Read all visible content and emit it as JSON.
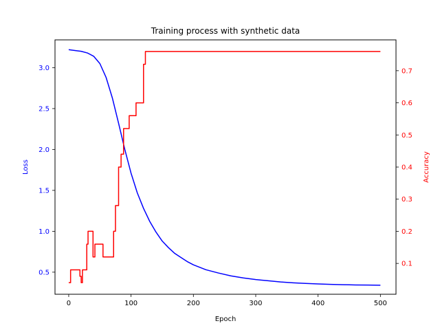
{
  "chart_data": {
    "type": "line",
    "title": "Training process with synthetic data",
    "xlabel": "Epoch",
    "xlim": [
      -22,
      525
    ],
    "xticks": [
      0,
      100,
      200,
      300,
      400,
      500
    ],
    "left_axis": {
      "label": "Loss",
      "color": "#0000ff",
      "ylim": [
        0.23,
        3.34
      ],
      "ticks": [
        0.5,
        1.0,
        1.5,
        2.0,
        2.5,
        3.0
      ],
      "tick_labels": [
        "0.5",
        "1.0",
        "1.5",
        "2.0",
        "2.5",
        "3.0"
      ]
    },
    "right_axis": {
      "label": "Accuracy",
      "color": "#ff0000",
      "ylim": [
        0.004,
        0.796
      ],
      "ticks": [
        0.1,
        0.2,
        0.3,
        0.4,
        0.5,
        0.6,
        0.7
      ],
      "tick_labels": [
        "0.1",
        "0.2",
        "0.3",
        "0.4",
        "0.5",
        "0.6",
        "0.7"
      ]
    },
    "series": [
      {
        "axis": "left",
        "color": "#0000ff",
        "x": [
          0,
          10,
          20,
          30,
          40,
          50,
          60,
          70,
          80,
          90,
          100,
          110,
          120,
          130,
          140,
          150,
          160,
          170,
          180,
          190,
          200,
          220,
          240,
          260,
          280,
          300,
          320,
          340,
          360,
          380,
          400,
          420,
          440,
          460,
          480,
          500
        ],
        "values": [
          3.22,
          3.21,
          3.2,
          3.18,
          3.14,
          3.05,
          2.88,
          2.63,
          2.32,
          2.0,
          1.71,
          1.47,
          1.28,
          1.12,
          0.99,
          0.88,
          0.8,
          0.73,
          0.68,
          0.63,
          0.59,
          0.53,
          0.49,
          0.455,
          0.43,
          0.41,
          0.395,
          0.38,
          0.37,
          0.362,
          0.356,
          0.351,
          0.347,
          0.344,
          0.342,
          0.34
        ]
      },
      {
        "axis": "right",
        "color": "#ff0000",
        "x": [
          0,
          3,
          3,
          18,
          18,
          20,
          20,
          22,
          22,
          29,
          29,
          31,
          31,
          39,
          39,
          42,
          42,
          45,
          45,
          55,
          55,
          72,
          72,
          75,
          75,
          80,
          80,
          84,
          84,
          88,
          88,
          93,
          93,
          97,
          97,
          100,
          100,
          108,
          108,
          110,
          110,
          120,
          120,
          123,
          123,
          500
        ],
        "values": [
          0.04,
          0.04,
          0.08,
          0.08,
          0.06,
          0.06,
          0.04,
          0.04,
          0.08,
          0.08,
          0.16,
          0.16,
          0.2,
          0.2,
          0.12,
          0.12,
          0.16,
          0.16,
          0.16,
          0.16,
          0.12,
          0.12,
          0.2,
          0.2,
          0.28,
          0.28,
          0.4,
          0.4,
          0.44,
          0.44,
          0.52,
          0.52,
          0.52,
          0.52,
          0.56,
          0.56,
          0.56,
          0.56,
          0.6,
          0.6,
          0.6,
          0.6,
          0.72,
          0.72,
          0.76,
          0.76
        ]
      }
    ]
  }
}
